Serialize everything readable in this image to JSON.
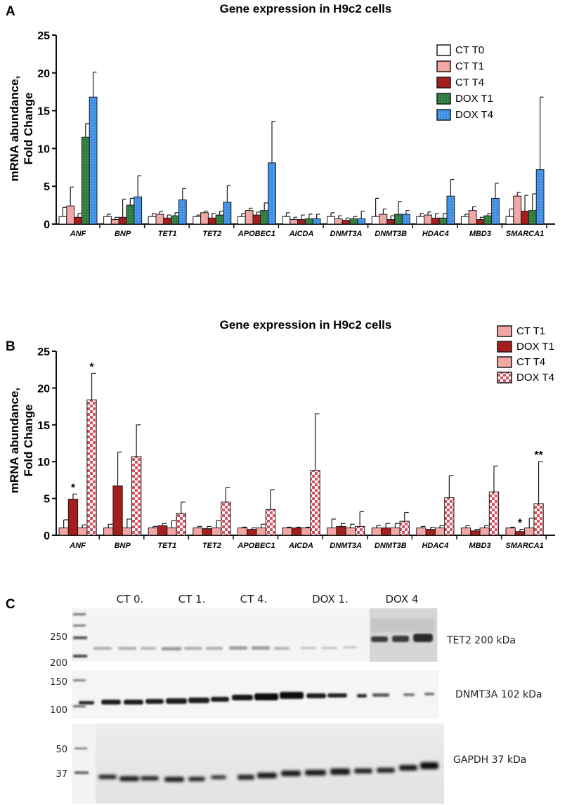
{
  "colors": {
    "ct_t0": "#ffffff",
    "ct_t1": "#f2a7a4",
    "ct_t4": "#a51d1d",
    "dox_t1": "#2f7a3e",
    "dox_t4": "#3f8ee6",
    "outline": "#1a1a1a"
  },
  "chart_data": [
    {
      "panel": "A",
      "type": "bar",
      "title": "Gene expression in H9c2 cells",
      "xlabel": "",
      "ylabel_line1": "mRNA abundance,",
      "ylabel_line2": "Fold Change",
      "ylim": [
        0,
        25
      ],
      "yticks": [
        "0",
        "5",
        "10",
        "15",
        "20",
        "25"
      ],
      "legend_position": "top-right",
      "categories": [
        "ANF",
        "BNP",
        "TET1",
        "TET2",
        "APOBEC1",
        "AICDA",
        "DNMT3A",
        "DNMT3B",
        "HDAC4",
        "MBD3",
        "SMARCA1"
      ],
      "series": [
        {
          "name": "CT T0",
          "color": "#ffffff",
          "pattern": "solid",
          "values": [
            1.0,
            1.0,
            1.0,
            1.0,
            1.0,
            1.0,
            1.0,
            1.0,
            1.0,
            1.0,
            1.0
          ],
          "errors": [
            1.2,
            0.3,
            0.4,
            0.2,
            0.4,
            0.5,
            0.5,
            2.4,
            0.4,
            0.3,
            1.0
          ]
        },
        {
          "name": "CT T1",
          "color": "#f2a7a4",
          "pattern": "solid",
          "values": [
            2.4,
            0.6,
            1.3,
            1.5,
            1.8,
            0.6,
            0.7,
            1.3,
            1.2,
            1.8,
            3.7
          ],
          "errors": [
            2.5,
            0.3,
            0.4,
            0.2,
            0.3,
            0.3,
            0.4,
            0.7,
            0.4,
            0.5,
            0.5
          ]
        },
        {
          "name": "CT T4",
          "color": "#a51d1d",
          "pattern": "solid",
          "values": [
            0.9,
            0.9,
            0.8,
            0.8,
            1.2,
            0.6,
            0.5,
            0.6,
            0.8,
            0.6,
            1.7
          ],
          "errors": [
            0.5,
            2.4,
            0.4,
            0.6,
            0.4,
            0.6,
            0.3,
            0.5,
            0.6,
            0.3,
            2.1
          ]
        },
        {
          "name": "DOX T1",
          "color": "#2f7a3e",
          "pattern": "solid",
          "values": [
            11.5,
            2.5,
            1.1,
            1.2,
            1.8,
            0.7,
            0.7,
            1.3,
            0.8,
            1.1,
            1.8
          ],
          "errors": [
            1.8,
            0.9,
            0.4,
            0.5,
            1.0,
            0.6,
            0.3,
            1.7,
            0.6,
            0.3,
            2.2
          ]
        },
        {
          "name": "DOX T4",
          "color": "#3f8ee6",
          "pattern": "solid",
          "values": [
            16.8,
            3.6,
            3.2,
            2.9,
            8.1,
            0.7,
            0.7,
            1.3,
            3.7,
            3.4,
            7.2
          ],
          "errors": [
            3.3,
            2.8,
            1.5,
            2.2,
            5.5,
            0.6,
            1.0,
            0.5,
            2.2,
            2.0,
            9.6
          ]
        }
      ]
    },
    {
      "panel": "B",
      "type": "bar",
      "title": "Gene expression in H9c2 cells",
      "xlabel": "",
      "ylabel_line1": "mRNA abundance,",
      "ylabel_line2": "Fold Change",
      "ylim": [
        0,
        25
      ],
      "yticks": [
        "0",
        "5",
        "10",
        "15",
        "20",
        "25"
      ],
      "legend_position": "top-right",
      "categories": [
        "ANF",
        "BNP",
        "TET1",
        "TET2",
        "APOBEC1",
        "AICDA",
        "DNMT3A",
        "DNMT3B",
        "HDAC4",
        "MBD3",
        "SMARCA1"
      ],
      "series": [
        {
          "name": "CT T1",
          "color": "#f2a7a4",
          "pattern": "solid",
          "values": [
            1.0,
            1.0,
            1.0,
            1.0,
            1.0,
            1.0,
            1.0,
            1.0,
            1.0,
            1.0,
            1.0
          ],
          "errors": [
            1.1,
            0.5,
            0.2,
            0.2,
            0.1,
            0.1,
            1.2,
            0.3,
            0.2,
            0.3,
            0.1
          ]
        },
        {
          "name": "DOX T1",
          "color": "#a51d1d",
          "pattern": "solid",
          "values": [
            4.9,
            6.7,
            1.3,
            0.9,
            0.8,
            1.0,
            1.2,
            1.0,
            0.8,
            0.6,
            0.5
          ],
          "errors": [
            0.7,
            4.6,
            0.3,
            0.3,
            0.2,
            0.1,
            0.4,
            0.6,
            0.3,
            0.2,
            0.3
          ]
        },
        {
          "name": "CT T4",
          "color": "#f2a7a4",
          "pattern": "solid",
          "values": [
            1.0,
            1.0,
            1.0,
            1.0,
            1.0,
            1.0,
            1.0,
            1.0,
            1.0,
            1.0,
            1.0
          ],
          "errors": [
            0.4,
            1.2,
            1.0,
            1.0,
            0.5,
            0.1,
            0.5,
            0.6,
            0.3,
            0.3,
            1.3
          ]
        },
        {
          "name": "DOX T4",
          "color": "#f2a7a4",
          "pattern": "checker",
          "values": [
            18.4,
            10.7,
            3.0,
            4.5,
            3.5,
            8.8,
            1.2,
            1.9,
            5.1,
            5.9,
            4.3
          ],
          "errors": [
            3.6,
            4.3,
            1.5,
            2.0,
            2.7,
            7.7,
            2.0,
            1.2,
            3.0,
            3.5,
            5.7
          ]
        }
      ],
      "annotations": [
        {
          "category": "ANF",
          "series": "DOX T1",
          "text": "*"
        },
        {
          "category": "ANF",
          "series": "DOX T4",
          "text": "*"
        },
        {
          "category": "SMARCA1",
          "series": "DOX T1",
          "text": "*"
        },
        {
          "category": "SMARCA1",
          "series": "DOX T4",
          "text": "**"
        }
      ]
    }
  ],
  "panel_c": {
    "label": "C",
    "lane_groups": [
      "CT 0.",
      "CT 1.",
      "CT 4.",
      "DOX 1.",
      "DOX 4"
    ],
    "markers_top": [
      "250",
      "200"
    ],
    "markers_mid": [
      "150",
      "100"
    ],
    "markers_bottom": [
      "50",
      "37"
    ],
    "bands": [
      "TET2 200 kDa",
      "DNMT3A 102 kDa",
      "GAPDH 37 kDa"
    ]
  }
}
